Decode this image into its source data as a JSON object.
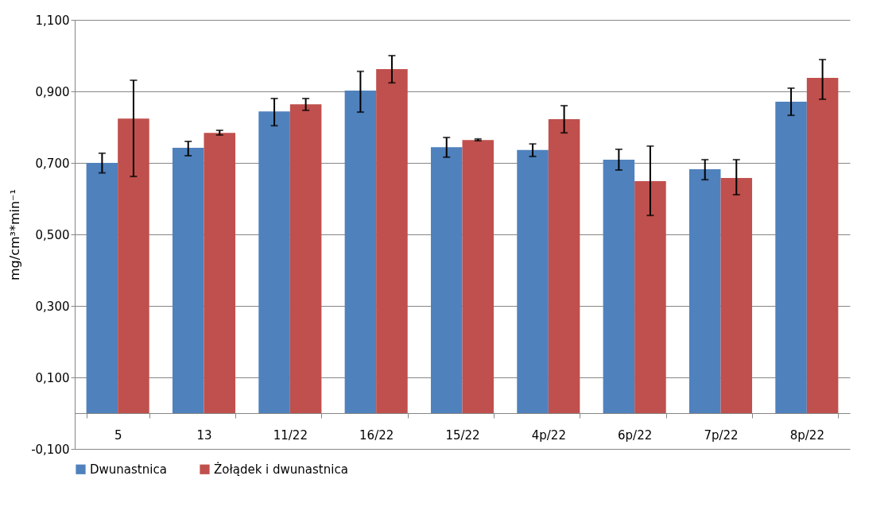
{
  "chart_data": {
    "type": "bar",
    "categories": [
      "5",
      "13",
      "11/22",
      "16/22",
      "15/22",
      "4p/22",
      "6p/22",
      "7p/22",
      "8p/22"
    ],
    "ylabel": "mg/cm³*min⁻¹",
    "ylim": [
      -0.1,
      1.1
    ],
    "yticks": [
      {
        "value": -0.1,
        "label": "-0,100"
      },
      {
        "value": 0.1,
        "label": "0,100"
      },
      {
        "value": 0.3,
        "label": "0,300"
      },
      {
        "value": 0.5,
        "label": "0,500"
      },
      {
        "value": 0.7,
        "label": "0,700"
      },
      {
        "value": 0.9,
        "label": "0,900"
      },
      {
        "value": 1.1,
        "label": "1,100"
      }
    ],
    "grid": "y",
    "legend": "bottom",
    "series": [
      {
        "name": "Dwunastnica",
        "color": "#4f81bd",
        "values": [
          0.7,
          0.742,
          0.844,
          0.902,
          0.744,
          0.736,
          0.709,
          0.682,
          0.871
        ],
        "errors": [
          [
            0.672,
            0.727
          ],
          [
            0.72,
            0.76
          ],
          [
            0.804,
            0.88
          ],
          [
            0.842,
            0.956
          ],
          [
            0.716,
            0.771
          ],
          [
            0.718,
            0.753
          ],
          [
            0.68,
            0.738
          ],
          [
            0.653,
            0.709
          ],
          [
            0.833,
            0.909
          ]
        ]
      },
      {
        "name": "Żołądek i dwunastnica",
        "color": "#c0504d",
        "values": [
          0.824,
          0.784,
          0.864,
          0.962,
          0.764,
          0.822,
          0.649,
          0.658,
          0.938
        ],
        "errors": [
          [
            0.662,
            0.931
          ],
          [
            0.778,
            0.791
          ],
          [
            0.847,
            0.88
          ],
          [
            0.924,
            1.0
          ],
          [
            0.762,
            0.767
          ],
          [
            0.784,
            0.86
          ],
          [
            0.553,
            0.747
          ],
          [
            0.611,
            0.709
          ],
          [
            0.878,
            0.989
          ]
        ]
      }
    ]
  }
}
